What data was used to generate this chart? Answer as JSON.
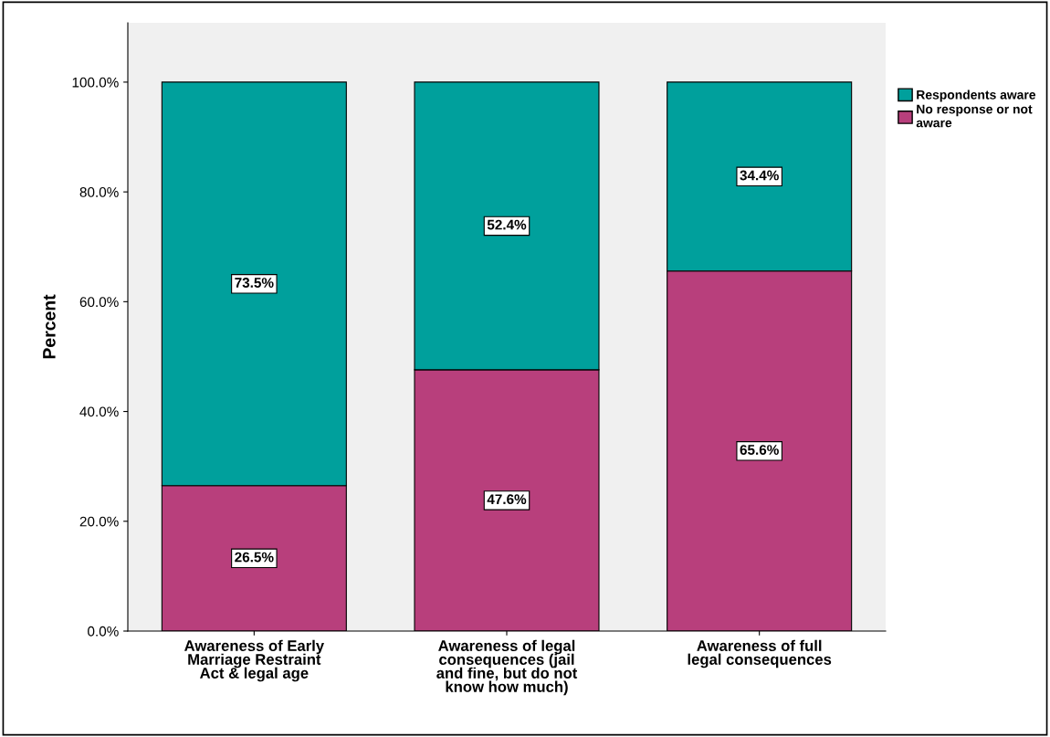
{
  "chart_data": {
    "type": "bar",
    "stacked": true,
    "ylabel": "Percent",
    "categories": [
      "Awareness of Early\nMarriage Restraint\nAct & legal age",
      "Awareness of legal\nconsequences (jail\nand fine, but do not\nknow how much)",
      "Awareness of full\nlegal consequences"
    ],
    "series": [
      {
        "name": "No response or not\naware",
        "color": "#b83f7c",
        "values": [
          26.5,
          47.6,
          65.6
        ],
        "value_labels": [
          "26.5%",
          "47.6%",
          "65.6%"
        ]
      },
      {
        "name": "Respondents aware",
        "color": "#00a09c",
        "values": [
          73.5,
          52.4,
          34.4
        ],
        "value_labels": [
          "73.5%",
          "52.4%",
          "34.4%"
        ]
      }
    ],
    "ylim": [
      0,
      110.8
    ],
    "yticks": [
      {
        "value": 0,
        "label": "0.0%"
      },
      {
        "value": 20,
        "label": "20.0%"
      },
      {
        "value": 40,
        "label": "40.0%"
      },
      {
        "value": 60,
        "label": "60.0%"
      },
      {
        "value": 80,
        "label": "80.0%"
      },
      {
        "value": 100,
        "label": "100.0%"
      }
    ],
    "grid": false,
    "legend": "top right"
  }
}
